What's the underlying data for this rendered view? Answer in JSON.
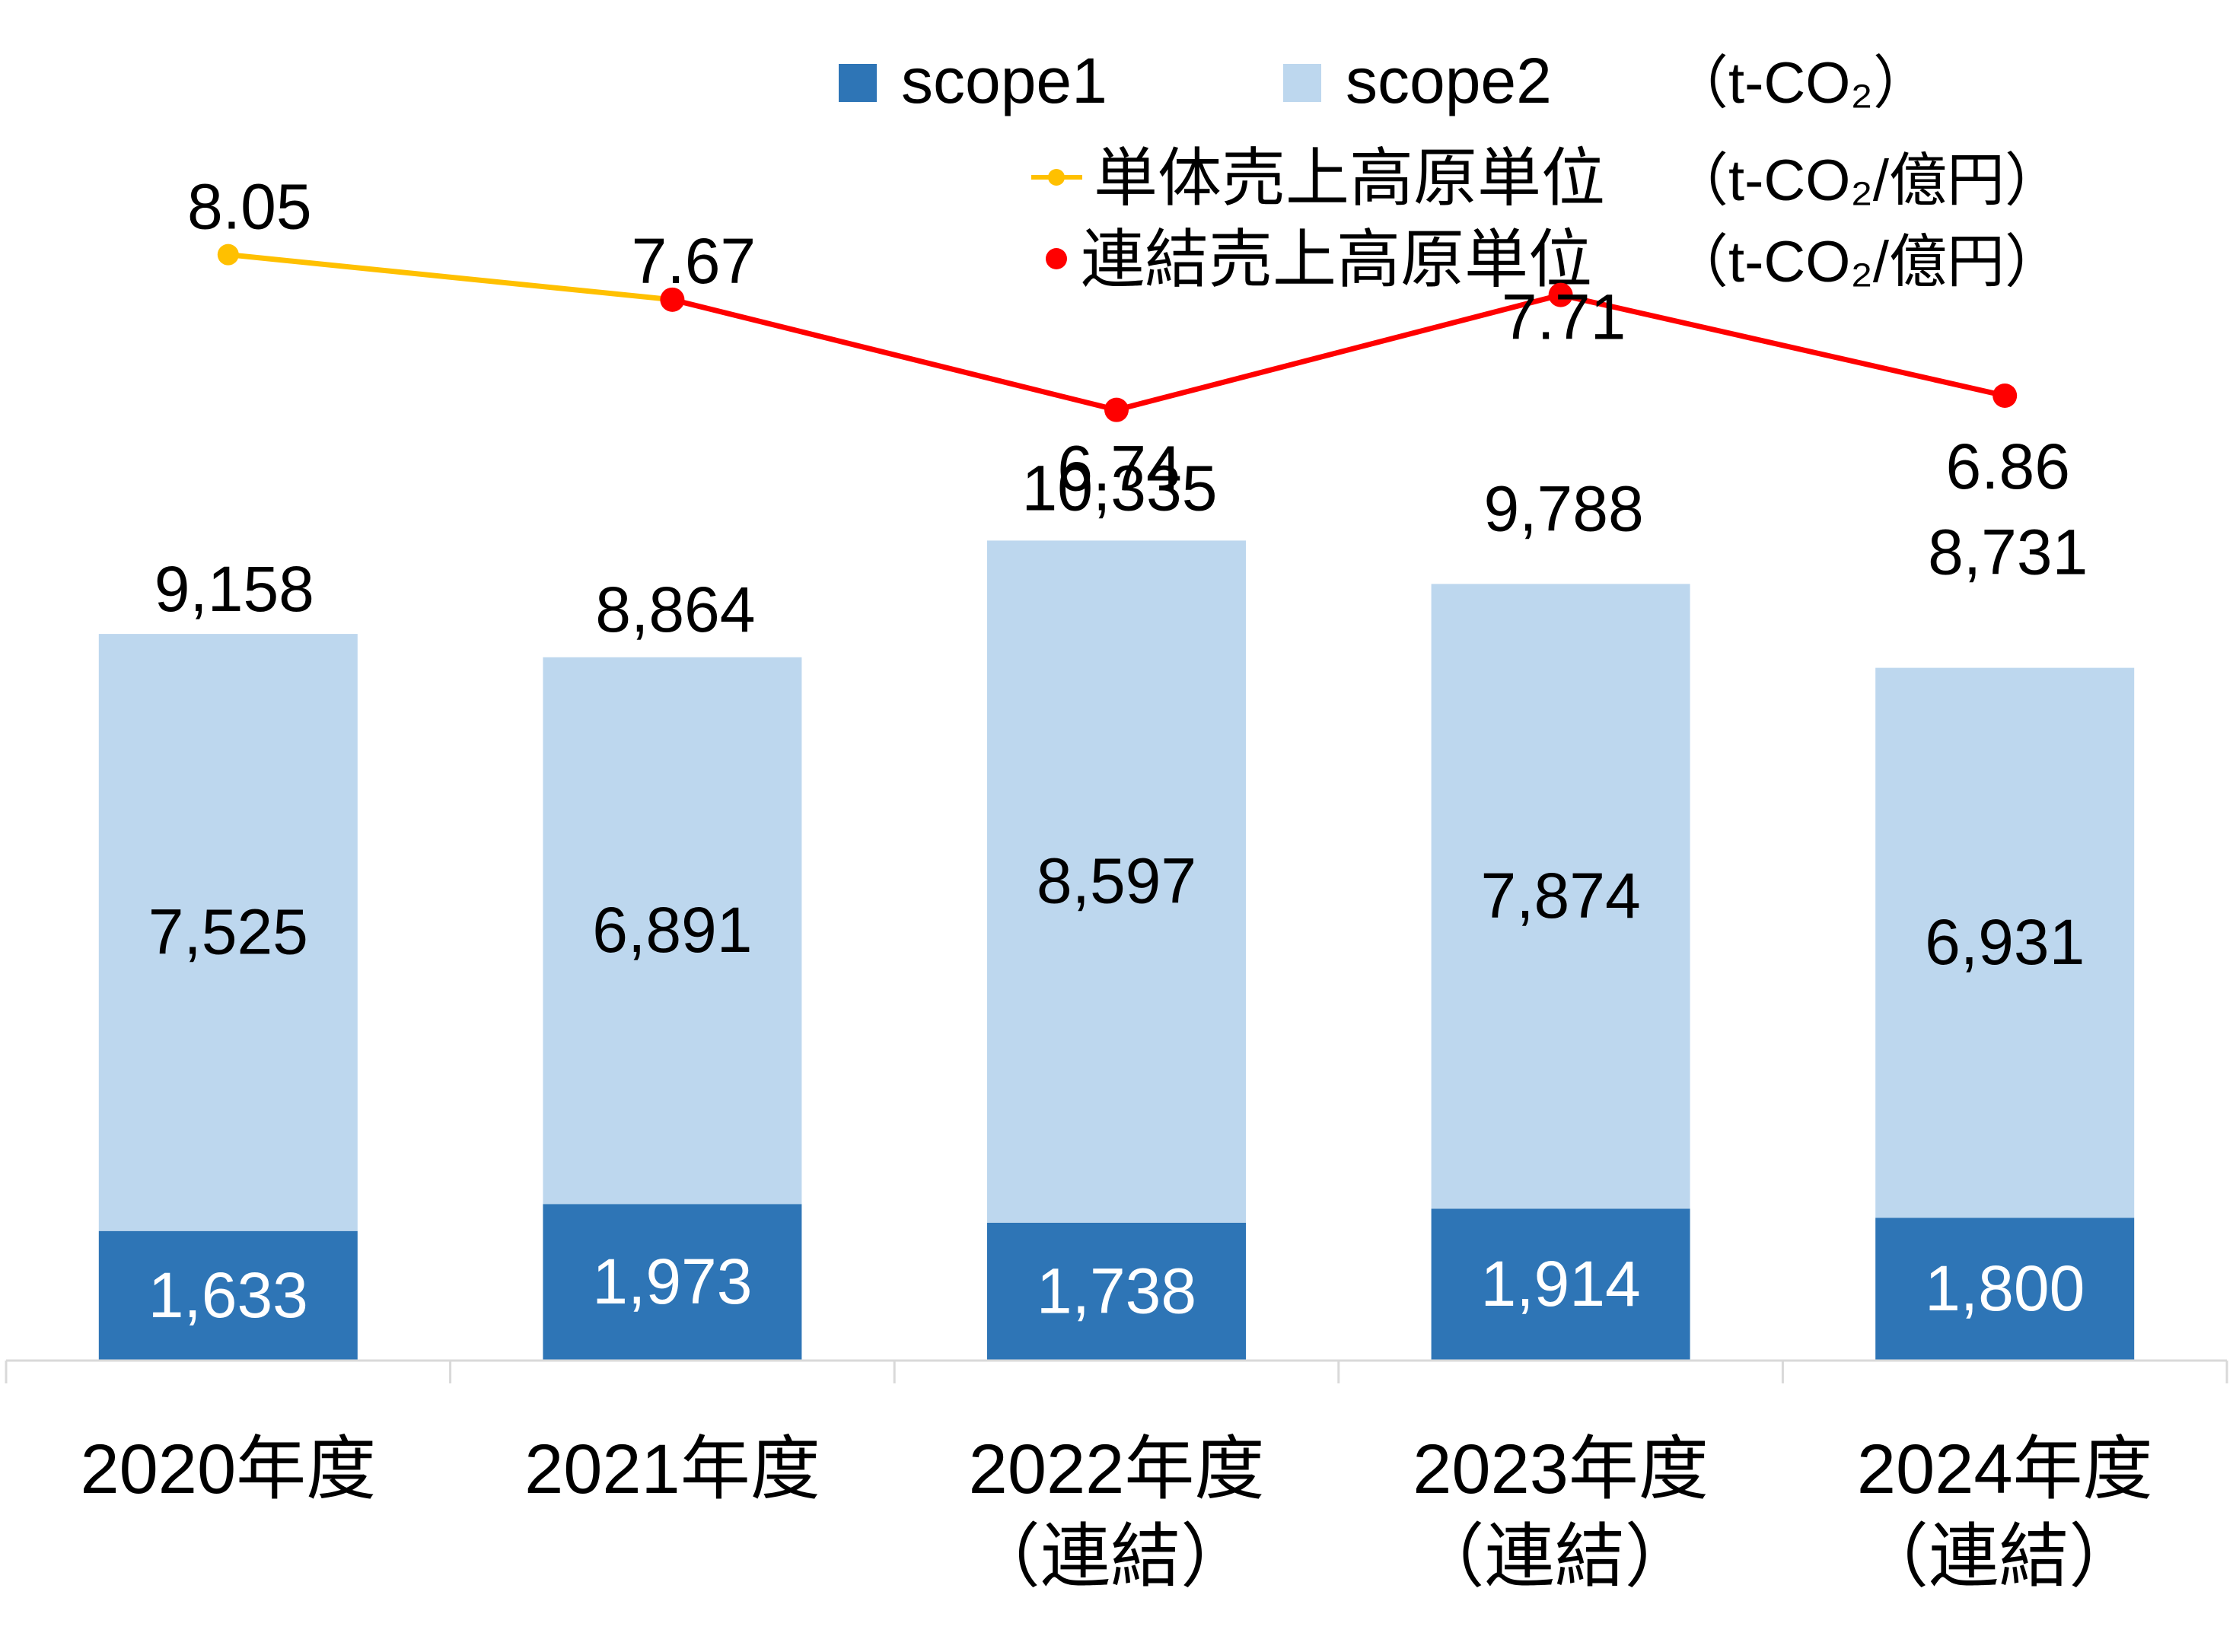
{
  "legend": {
    "scope1": "scope1",
    "scope2": "scope2",
    "unit_bars": "（t-CO₂）",
    "line_single": "単体売上高原単位",
    "line_consolidated": "連結売上高原単位",
    "unit_line_single": "（t-CO₂/億円）",
    "unit_line_consolidated": "（t-CO₂/億円）"
  },
  "colors": {
    "scope1": "#2E75B6",
    "scope2": "#BDD7EE",
    "single": "#FFC000",
    "consolidated": "#FF0000",
    "axis": "#D9D9D9",
    "text": "#000000"
  },
  "chart_data": {
    "type": "bar",
    "stacked": true,
    "categories": [
      [
        "2020年度"
      ],
      [
        "2021年度"
      ],
      [
        "2022年度",
        "（連結）"
      ],
      [
        "2023年度",
        "（連結）"
      ],
      [
        "2024年度",
        "（連結）"
      ]
    ],
    "series": [
      {
        "name": "scope1",
        "values": [
          1633,
          1973,
          1738,
          1914,
          1800
        ]
      },
      {
        "name": "scope2",
        "values": [
          7525,
          6891,
          8597,
          7874,
          6931
        ]
      }
    ],
    "totals": [
      9158,
      8864,
      10335,
      9788,
      8731
    ],
    "total_labels": [
      "9,158",
      "8,864",
      "10,335",
      "9,788",
      "8,731"
    ],
    "scope1_labels": [
      "1,633",
      "1,973",
      "1,738",
      "1,914",
      "1,800"
    ],
    "scope2_labels": [
      "7,525",
      "6,891",
      "8,597",
      "7,874",
      "6,931"
    ],
    "line_series": [
      {
        "name": "単体売上高原単位",
        "values": [
          8.05,
          7.67,
          null,
          null,
          null
        ],
        "labels": [
          "8.05",
          "7.67",
          "",
          "",
          ""
        ]
      },
      {
        "name": "連結売上高原単位",
        "values": [
          null,
          7.67,
          6.74,
          7.71,
          6.86
        ],
        "labels": [
          "",
          "",
          "6.74",
          "7.71",
          "6.86"
        ]
      }
    ],
    "ylim": [
      0,
      10335
    ],
    "grid": false,
    "legend_position": "top-right"
  }
}
